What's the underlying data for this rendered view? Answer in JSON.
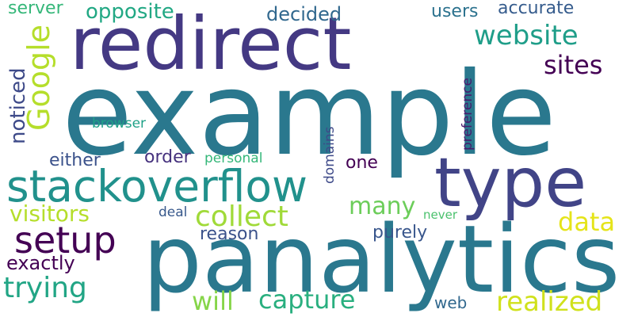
{
  "word_cloud": {
    "words": [
      {
        "text": "example",
        "color": "#2a788e"
      },
      {
        "text": "panalytics",
        "color": "#2a788e"
      },
      {
        "text": "redirect",
        "color": "#443983"
      },
      {
        "text": "type",
        "color": "#414487"
      },
      {
        "text": "stackoverflow",
        "color": "#21918c"
      },
      {
        "text": "setup",
        "color": "#440154"
      },
      {
        "text": "Google",
        "color": "#b5de2b"
      },
      {
        "text": "website",
        "color": "#1f9e89"
      },
      {
        "text": "collect",
        "color": "#a0da39"
      },
      {
        "text": "realized",
        "color": "#d0e11c"
      },
      {
        "text": "trying",
        "color": "#21a585"
      },
      {
        "text": "capture",
        "color": "#29af7f"
      },
      {
        "text": "visitors",
        "color": "#b5de2b"
      },
      {
        "text": "sites",
        "color": "#440154"
      },
      {
        "text": "will",
        "color": "#86d549"
      },
      {
        "text": "noticed",
        "color": "#3e4a89"
      },
      {
        "text": "many",
        "color": "#6ccd5a"
      },
      {
        "text": "data",
        "color": "#e5e419"
      },
      {
        "text": "opposite",
        "color": "#22a884"
      },
      {
        "text": "decided",
        "color": "#31688e"
      },
      {
        "text": "either",
        "color": "#3b528b"
      },
      {
        "text": "order",
        "color": "#46327e"
      },
      {
        "text": "exactly",
        "color": "#440154"
      },
      {
        "text": "reason",
        "color": "#3b528b"
      },
      {
        "text": "users",
        "color": "#2c728e"
      },
      {
        "text": "accurate",
        "color": "#365c8d"
      },
      {
        "text": "purely",
        "color": "#39568c"
      },
      {
        "text": "one",
        "color": "#440154"
      },
      {
        "text": "server",
        "color": "#35b779"
      },
      {
        "text": "personal",
        "color": "#35b779"
      },
      {
        "text": "browser",
        "color": "#1fa187"
      },
      {
        "text": "deal",
        "color": "#38598c"
      },
      {
        "text": "web",
        "color": "#31688e"
      },
      {
        "text": "preference",
        "color": "#481b6d"
      },
      {
        "text": "domains",
        "color": "#3e4a89"
      },
      {
        "text": "never",
        "color": "#4ac16d"
      }
    ]
  }
}
